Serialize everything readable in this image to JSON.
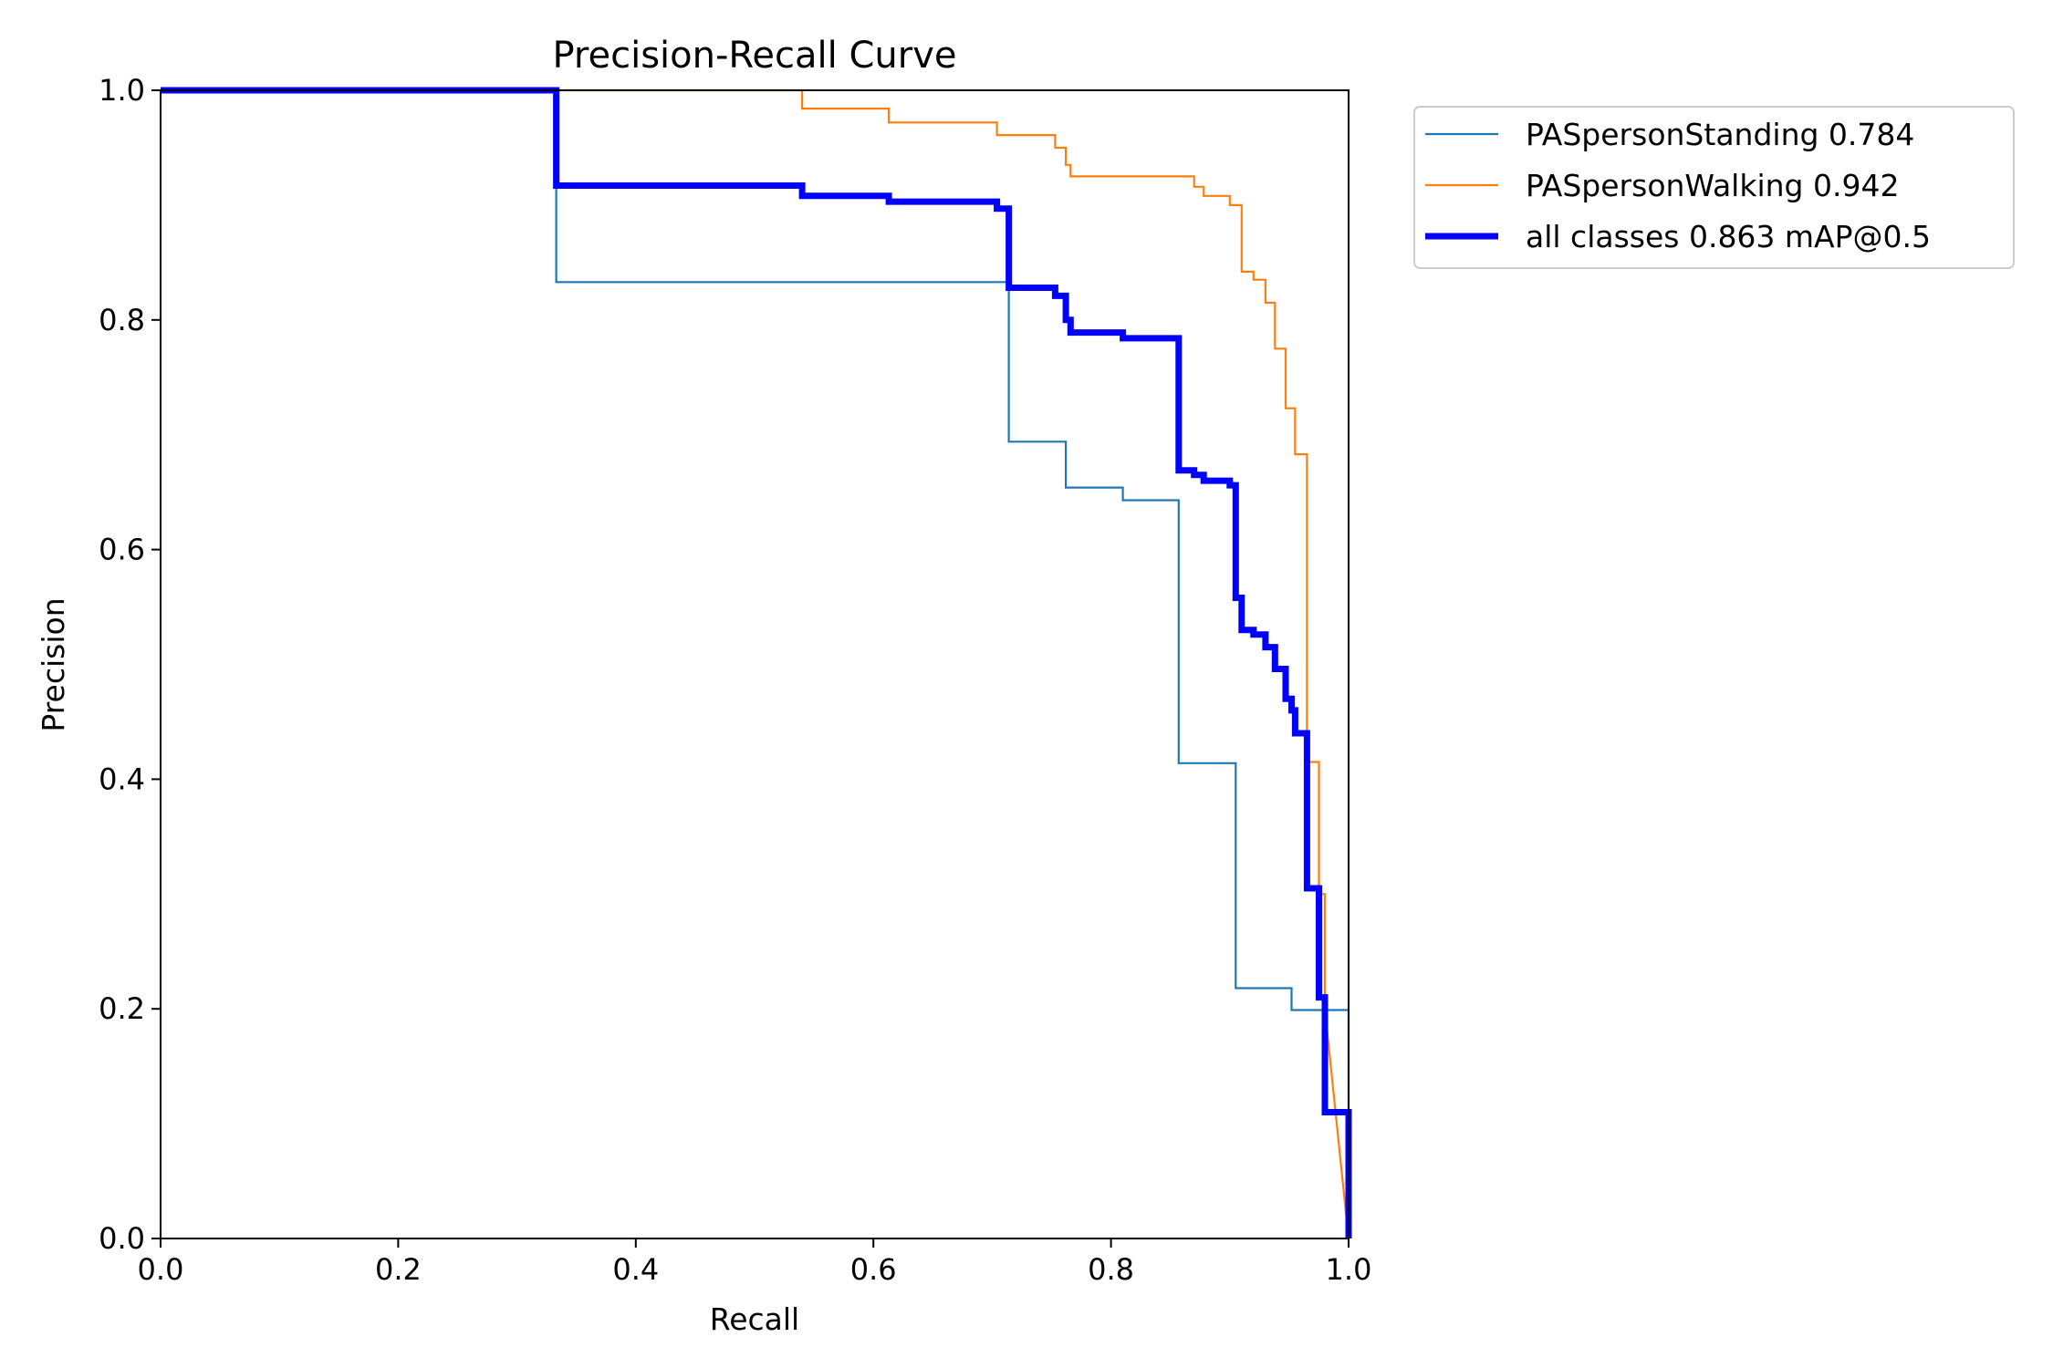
{
  "chart_data": {
    "type": "line",
    "title": "Precision-Recall Curve",
    "xlabel": "Recall",
    "ylabel": "Precision",
    "xlim": [
      0,
      1
    ],
    "ylim": [
      0,
      1
    ],
    "xticks": [
      "0.0",
      "0.2",
      "0.4",
      "0.6",
      "0.8",
      "1.0"
    ],
    "yticks": [
      "0.0",
      "0.2",
      "0.4",
      "0.6",
      "0.8",
      "1.0"
    ],
    "grid": false,
    "legend_position": "outside-top-right",
    "series": [
      {
        "name": "PASpersonStanding 0.784",
        "color": "#1f77b4",
        "line_width": "thin",
        "x": [
          0,
          0.333,
          0.333,
          0.714,
          0.714,
          0.762,
          0.762,
          0.81,
          0.81,
          0.857,
          0.857,
          0.905,
          0.905,
          0.952,
          0.952,
          1.0,
          1.0
        ],
        "y": [
          1.0,
          1.0,
          0.833,
          0.833,
          0.694,
          0.694,
          0.654,
          0.654,
          0.643,
          0.643,
          0.414,
          0.414,
          0.218,
          0.218,
          0.199,
          0.199,
          0.0
        ]
      },
      {
        "name": "PASpersonWalking 0.942",
        "color": "#ff7f0e",
        "line_width": "thin",
        "x": [
          0,
          0.54,
          0.54,
          0.613,
          0.613,
          0.704,
          0.704,
          0.753,
          0.753,
          0.762,
          0.762,
          0.766,
          0.766,
          0.87,
          0.87,
          0.878,
          0.878,
          0.9,
          0.9,
          0.91,
          0.91,
          0.92,
          0.92,
          0.93,
          0.93,
          0.938,
          0.938,
          0.947,
          0.947,
          0.955,
          0.955,
          0.965,
          0.965,
          0.975,
          0.975,
          0.98,
          0.98,
          0.99,
          1.0
        ],
        "y": [
          1.0,
          1.0,
          0.984,
          0.984,
          0.972,
          0.972,
          0.961,
          0.961,
          0.95,
          0.95,
          0.935,
          0.935,
          0.925,
          0.925,
          0.916,
          0.916,
          0.908,
          0.908,
          0.9,
          0.9,
          0.842,
          0.842,
          0.835,
          0.835,
          0.815,
          0.815,
          0.775,
          0.775,
          0.723,
          0.723,
          0.683,
          0.683,
          0.415,
          0.415,
          0.3,
          0.3,
          0.2,
          0.1,
          0.0
        ]
      },
      {
        "name": "all classes 0.863 mAP@0.5",
        "color": "#0000ff",
        "line_width": "thick",
        "x": [
          0,
          0.333,
          0.333,
          0.54,
          0.54,
          0.613,
          0.613,
          0.704,
          0.704,
          0.714,
          0.714,
          0.753,
          0.753,
          0.762,
          0.762,
          0.766,
          0.766,
          0.81,
          0.81,
          0.857,
          0.857,
          0.87,
          0.87,
          0.878,
          0.878,
          0.9,
          0.9,
          0.905,
          0.905,
          0.91,
          0.91,
          0.92,
          0.92,
          0.93,
          0.93,
          0.938,
          0.938,
          0.947,
          0.947,
          0.952,
          0.952,
          0.955,
          0.955,
          0.965,
          0.965,
          0.975,
          0.975,
          0.98,
          0.98,
          1.0,
          1.0
        ],
        "y": [
          1.0,
          1.0,
          0.917,
          0.917,
          0.908,
          0.908,
          0.903,
          0.903,
          0.897,
          0.897,
          0.828,
          0.828,
          0.821,
          0.821,
          0.8,
          0.8,
          0.789,
          0.789,
          0.784,
          0.784,
          0.669,
          0.669,
          0.665,
          0.665,
          0.66,
          0.66,
          0.656,
          0.656,
          0.558,
          0.558,
          0.53,
          0.53,
          0.526,
          0.526,
          0.515,
          0.515,
          0.496,
          0.496,
          0.47,
          0.47,
          0.46,
          0.46,
          0.44,
          0.44,
          0.305,
          0.305,
          0.21,
          0.21,
          0.11,
          0.11,
          0.0
        ]
      }
    ]
  }
}
